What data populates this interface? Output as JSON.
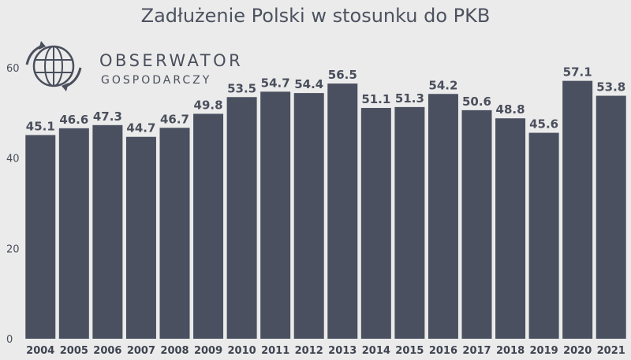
{
  "chart_data": {
    "type": "bar",
    "title": "Zadłużenie Polski w stosunku do PKB",
    "categories": [
      "2004",
      "2005",
      "2006",
      "2007",
      "2008",
      "2009",
      "2010",
      "2011",
      "2012",
      "2013",
      "2014",
      "2015",
      "2016",
      "2017",
      "2018",
      "2019",
      "2020",
      "2021"
    ],
    "values": [
      45.1,
      46.6,
      47.3,
      44.7,
      46.7,
      49.8,
      53.5,
      54.7,
      54.4,
      56.5,
      51.1,
      51.3,
      54.2,
      50.6,
      48.8,
      45.6,
      57.1,
      53.8
    ],
    "value_labels": [
      "45.1",
      "46.6",
      "47.3",
      "44.7",
      "46.7",
      "49.8",
      "53.5",
      "54.7",
      "54.4",
      "56.5",
      "51.1",
      "51.3",
      "54.2",
      "50.6",
      "48.8",
      "45.6",
      "57.1",
      "53.8"
    ],
    "ylim": [
      0,
      60
    ],
    "yticks": [
      0,
      20,
      40,
      60
    ],
    "ytick_labels": [
      "0",
      "20",
      "40",
      "60"
    ],
    "grid": false,
    "bar_color": "#4b5060",
    "background_color": "#ebebeb"
  },
  "branding": {
    "name": "OBSERWATOR",
    "subtitle": "GOSPODARCZY",
    "icon": "globe-arrows-icon"
  }
}
